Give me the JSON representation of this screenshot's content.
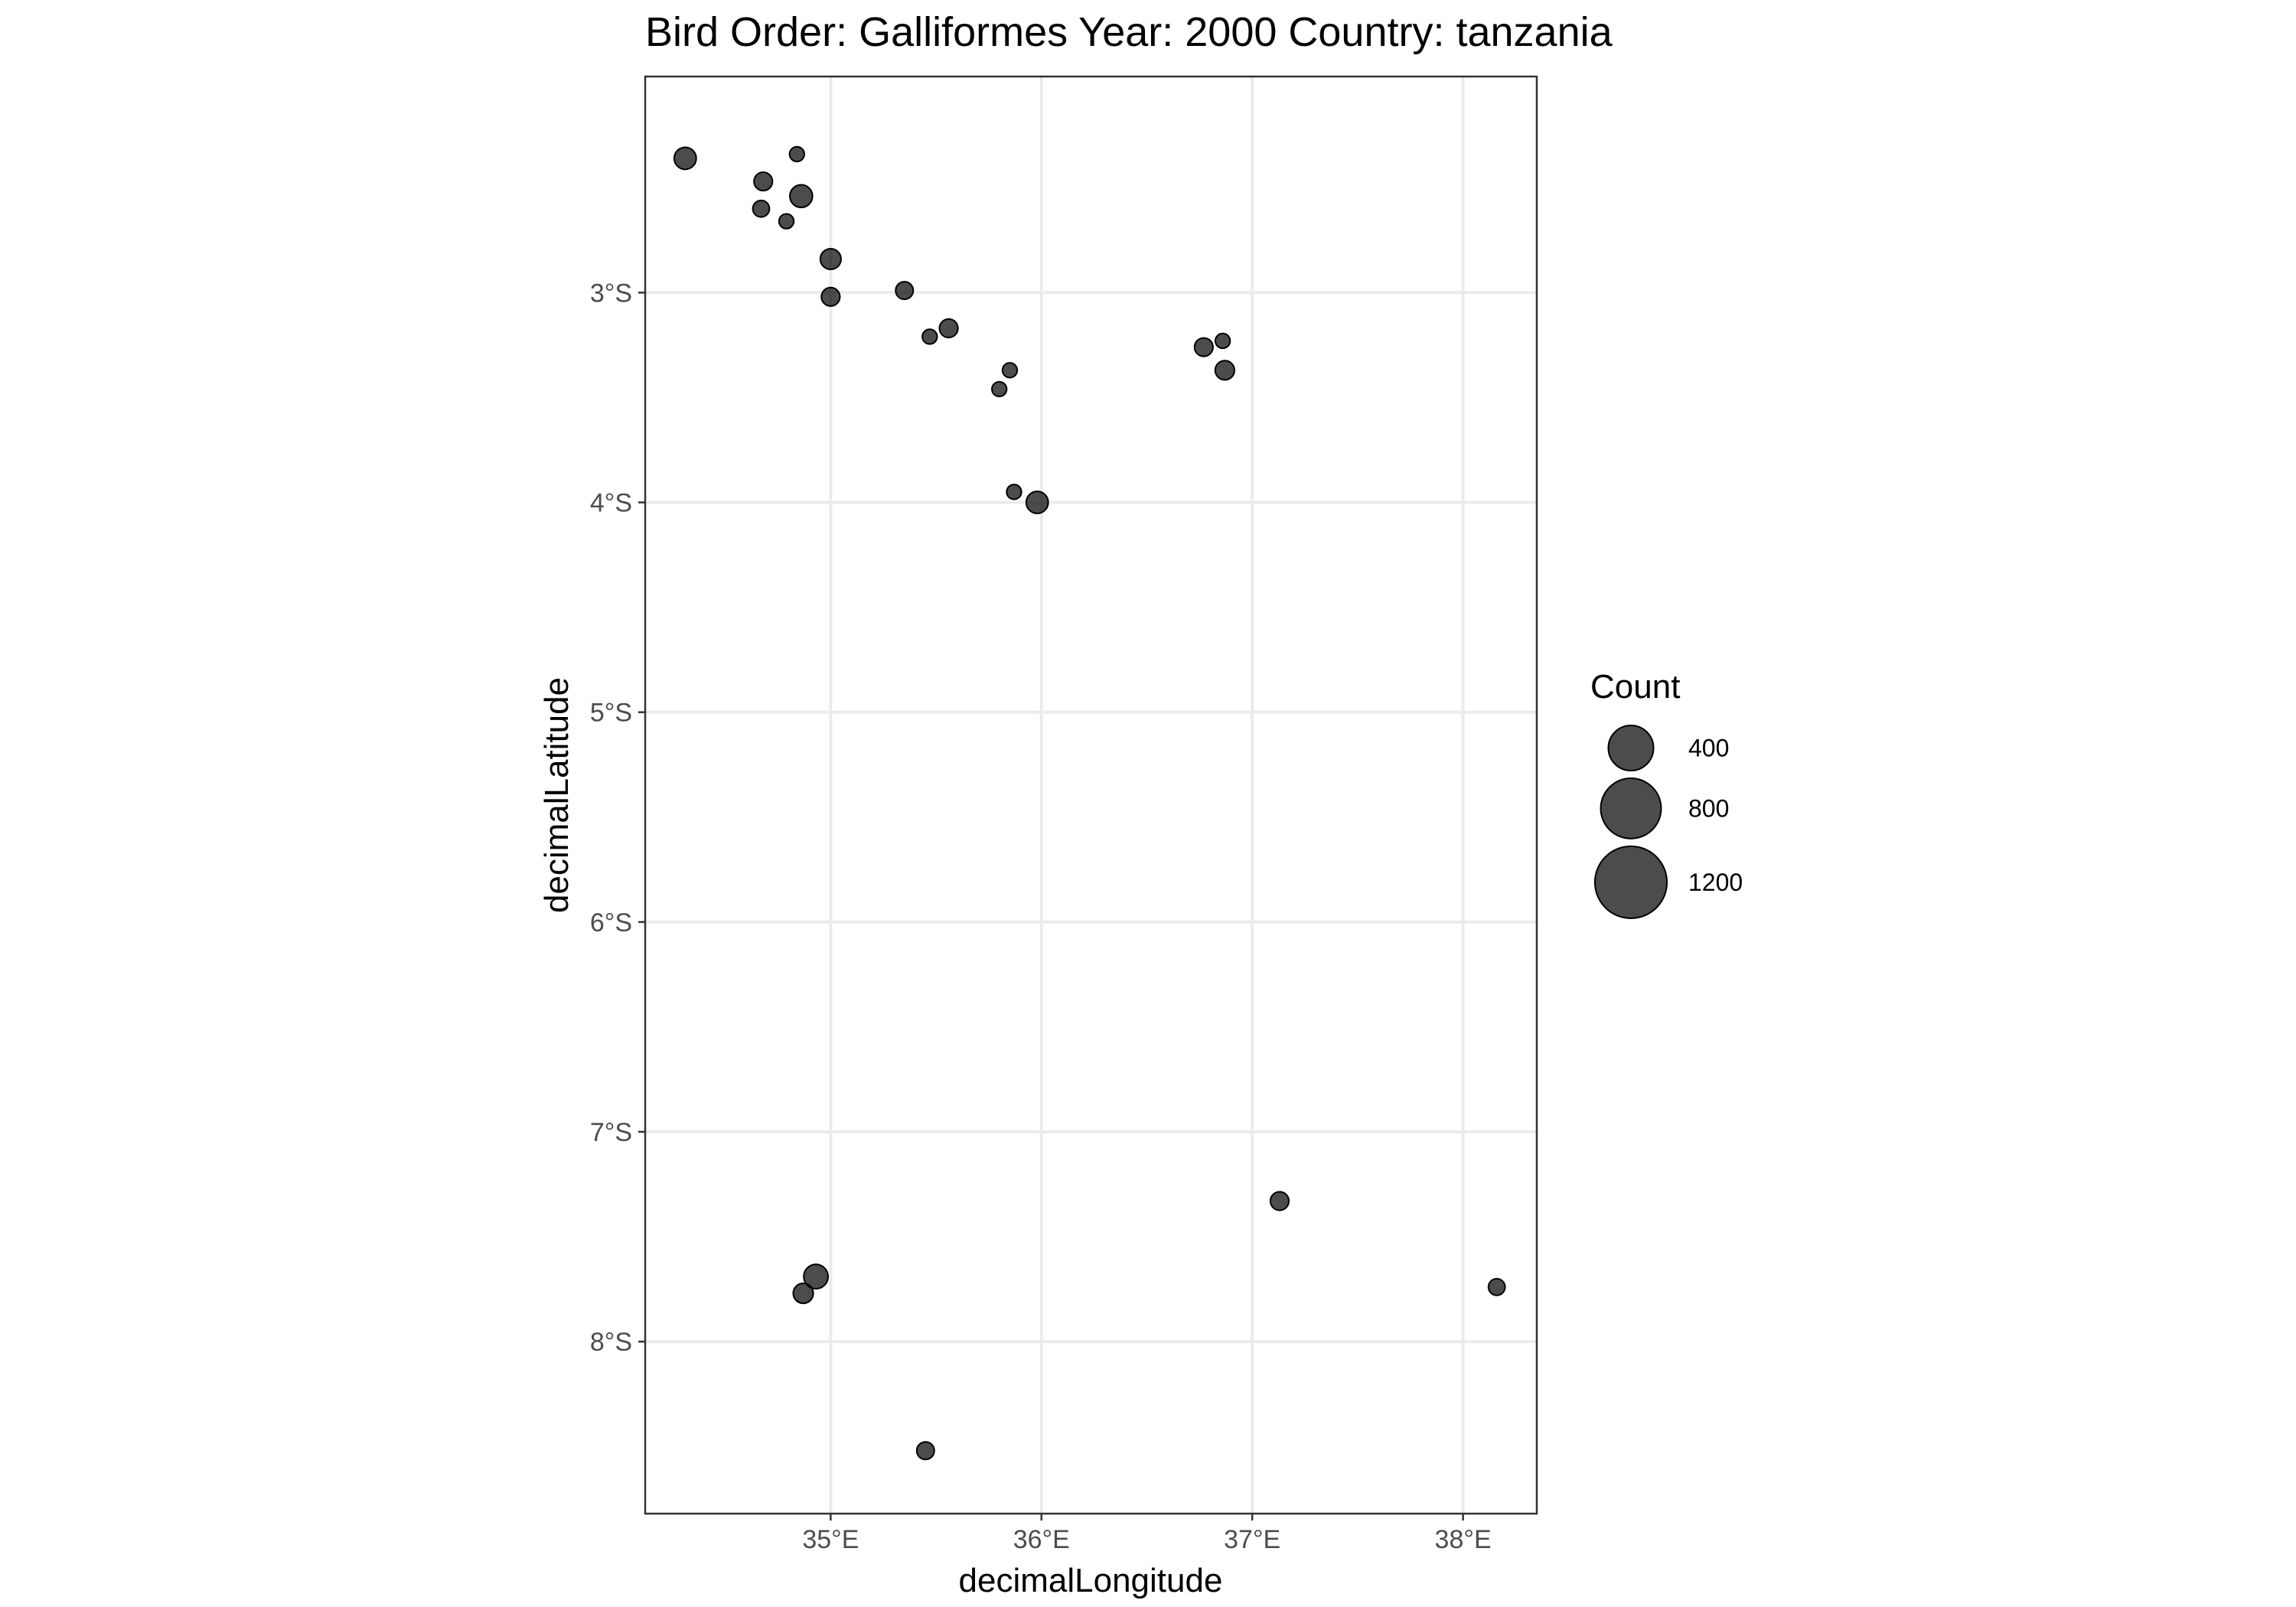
{
  "chart_data": {
    "type": "scatter",
    "title": "Bird Order: Galliformes Year: 2000 Country: tanzania",
    "xlabel": "decimalLongitude",
    "ylabel": "decimalLatitude",
    "xlim": [
      34.12,
      38.35
    ],
    "ylim": [
      -8.82,
      -1.97
    ],
    "x_ticks": [
      {
        "value": 35,
        "label": "35°E"
      },
      {
        "value": 36,
        "label": "36°E"
      },
      {
        "value": 37,
        "label": "37°E"
      },
      {
        "value": 38,
        "label": "38°E"
      }
    ],
    "y_ticks": [
      {
        "value": -3,
        "label": "3°S"
      },
      {
        "value": -4,
        "label": "4°S"
      },
      {
        "value": -5,
        "label": "5°S"
      },
      {
        "value": -6,
        "label": "6°S"
      },
      {
        "value": -7,
        "label": "7°S"
      },
      {
        "value": -8,
        "label": "8°S"
      }
    ],
    "grid": true,
    "point_color": "#000000",
    "point_alpha": 0.7,
    "size_variable": "Count",
    "legend": {
      "title": "Count",
      "placement": "right",
      "entries": [
        {
          "count": 400,
          "label": "400"
        },
        {
          "count": 800,
          "label": "800"
        },
        {
          "count": 1200,
          "label": "1200"
        }
      ]
    },
    "points": [
      {
        "x": 34.31,
        "y": -2.36,
        "count": 55
      },
      {
        "x": 34.68,
        "y": -2.47,
        "count": 30
      },
      {
        "x": 34.84,
        "y": -2.34,
        "count": 12
      },
      {
        "x": 34.86,
        "y": -2.54,
        "count": 60
      },
      {
        "x": 34.67,
        "y": -2.6,
        "count": 20
      },
      {
        "x": 34.79,
        "y": -2.66,
        "count": 12
      },
      {
        "x": 35.0,
        "y": -2.84,
        "count": 45
      },
      {
        "x": 35.0,
        "y": -3.02,
        "count": 30
      },
      {
        "x": 35.35,
        "y": -2.99,
        "count": 25
      },
      {
        "x": 35.47,
        "y": -3.21,
        "count": 12
      },
      {
        "x": 35.56,
        "y": -3.17,
        "count": 30
      },
      {
        "x": 35.85,
        "y": -3.37,
        "count": 12
      },
      {
        "x": 35.8,
        "y": -3.46,
        "count": 12
      },
      {
        "x": 35.87,
        "y": -3.95,
        "count": 12
      },
      {
        "x": 35.98,
        "y": -4.0,
        "count": 55
      },
      {
        "x": 36.77,
        "y": -3.26,
        "count": 30
      },
      {
        "x": 36.86,
        "y": -3.23,
        "count": 12
      },
      {
        "x": 36.87,
        "y": -3.37,
        "count": 35
      },
      {
        "x": 37.13,
        "y": -7.33,
        "count": 30
      },
      {
        "x": 38.16,
        "y": -7.74,
        "count": 20
      },
      {
        "x": 34.93,
        "y": -7.69,
        "count": 75
      },
      {
        "x": 34.87,
        "y": -7.77,
        "count": 40
      },
      {
        "x": 35.45,
        "y": -8.52,
        "count": 25
      }
    ]
  }
}
